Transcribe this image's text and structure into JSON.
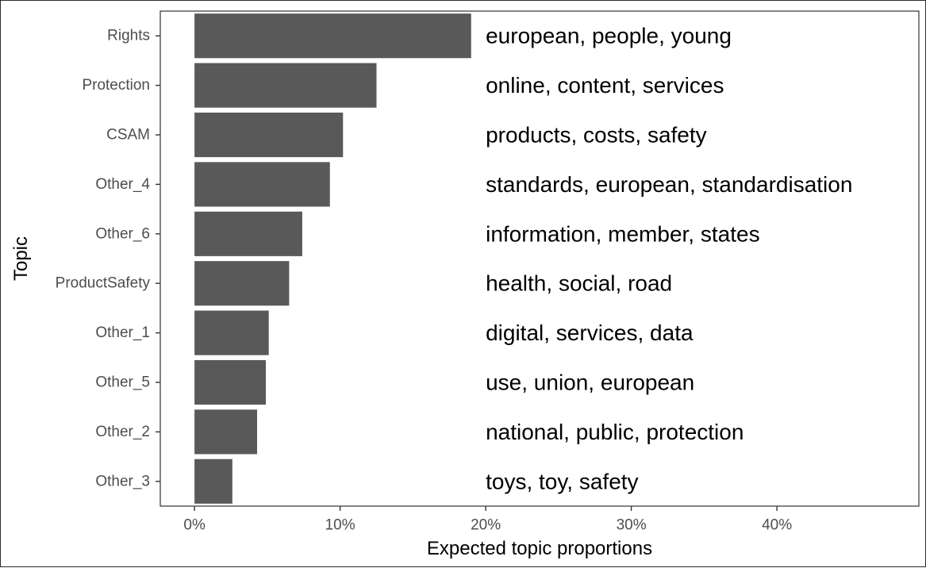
{
  "chart_data": {
    "type": "bar",
    "orientation": "horizontal",
    "categories": [
      "Rights",
      "Protection",
      "CSAM",
      "Other_4",
      "Other_6",
      "ProductSafety",
      "Other_1",
      "Other_5",
      "Other_2",
      "Other_3"
    ],
    "values": [
      0.19,
      0.125,
      0.102,
      0.093,
      0.074,
      0.065,
      0.051,
      0.049,
      0.043,
      0.026
    ],
    "bar_labels": [
      "european, people, young",
      "online, content, services",
      "products, costs, safety",
      "standards, european, standardisation",
      "information, member, states",
      "health, social, road",
      "digital, services, data",
      "use, union, european",
      "national, public, protection",
      "toys, toy, safety"
    ],
    "x_ticks": [
      0,
      0.1,
      0.2,
      0.3,
      0.4
    ],
    "x_tick_labels": [
      "0%",
      "10%",
      "20%",
      "30%",
      "40%"
    ],
    "xlim": [
      -0.0235,
      0.4975
    ],
    "xlabel": "Expected topic proportions",
    "ylabel": "Topic",
    "bar_color": "#595959",
    "label_x_value": 0.2,
    "grid": false,
    "legend": "none"
  }
}
